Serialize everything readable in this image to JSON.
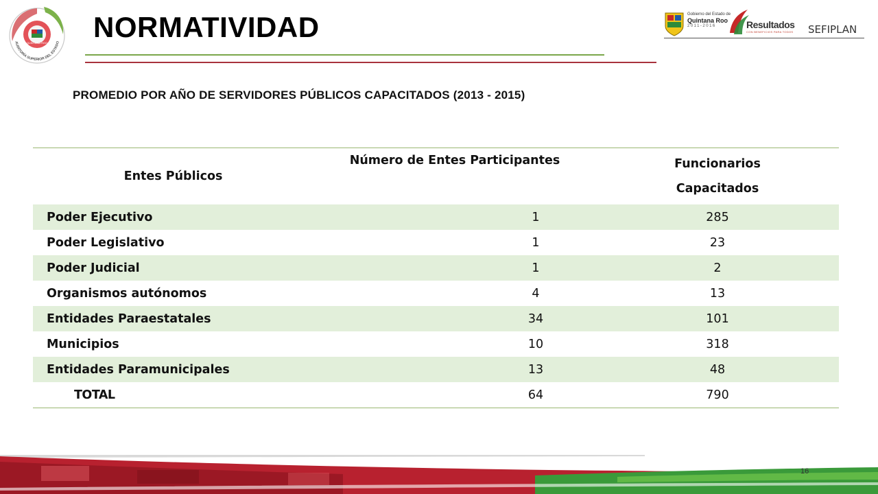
{
  "header": {
    "title": "NORMATIVIDAD",
    "right_logo_text": "SEFIPLAN",
    "qroo_logo": {
      "line1": "Gobierno del Estado de",
      "name": "Quintana Roo",
      "years": "2011-2016"
    },
    "resultados_logo": {
      "name": "Resultados",
      "tagline": "CON BENEFICIOS PARA TODOS"
    },
    "left_logo": {
      "text_outer": "AUDITORÍA SUPERIOR DEL ESTADO",
      "text_inner": "QUINTANA ROO"
    }
  },
  "subtitle": "PROMEDIO POR AÑO DE SERVIDORES PÚBLICOS CAPACITADOS (2013 - 2015)",
  "table": {
    "headers": [
      "Entes Públicos",
      "Número de Entes Participantes",
      "Funcionarios Capacitados"
    ],
    "rows": [
      {
        "name": "Poder Ejecutivo",
        "entes": "1",
        "funcionarios": "285"
      },
      {
        "name": "Poder Legislativo",
        "entes": "1",
        "funcionarios": "23"
      },
      {
        "name": "Poder Judicial",
        "entes": "1",
        "funcionarios": "2"
      },
      {
        "name": "Organismos autónomos",
        "entes": "4",
        "funcionarios": "13"
      },
      {
        "name": "Entidades Paraestatales",
        "entes": "34",
        "funcionarios": "101"
      },
      {
        "name": "Municipios",
        "entes": "10",
        "funcionarios": "318"
      },
      {
        "name": "Entidades Paramunicipales",
        "entes": "13",
        "funcionarios": "48"
      }
    ],
    "total": {
      "name": "TOTAL",
      "entes": "64",
      "funcionarios": "790"
    }
  },
  "footer": {
    "page_number": "16"
  },
  "colors": {
    "green_rule": "#7aa64a",
    "red_rule": "#a8323c",
    "row_shade": "#e2efda",
    "footer_red": "#b8212f",
    "footer_green": "#3a9a3a"
  }
}
